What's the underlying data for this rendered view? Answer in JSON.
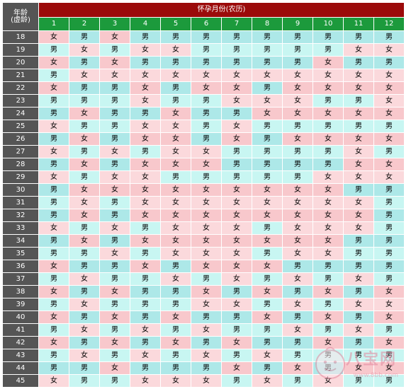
{
  "header": {
    "age_label": "年龄\n(虚龄)",
    "age_label_line1": "年龄",
    "age_label_line2": "(虚龄)",
    "title": "怀孕月份(农历)",
    "months": [
      "1",
      "2",
      "3",
      "4",
      "5",
      "6",
      "7",
      "8",
      "9",
      "10",
      "11",
      "12"
    ]
  },
  "rows": [
    {
      "age": "18",
      "cells": [
        "女",
        "男",
        "女",
        "男",
        "男",
        "男",
        "男",
        "男",
        "男",
        "男",
        "男",
        "男"
      ]
    },
    {
      "age": "19",
      "cells": [
        "男",
        "女",
        "男",
        "女",
        "女",
        "男",
        "男",
        "男",
        "男",
        "男",
        "女",
        "女"
      ]
    },
    {
      "age": "20",
      "cells": [
        "女",
        "男",
        "女",
        "男",
        "男",
        "男",
        "男",
        "男",
        "男",
        "女",
        "男",
        "男"
      ]
    },
    {
      "age": "21",
      "cells": [
        "男",
        "女",
        "女",
        "女",
        "女",
        "女",
        "女",
        "女",
        "女",
        "女",
        "女",
        "女"
      ]
    },
    {
      "age": "22",
      "cells": [
        "女",
        "男",
        "男",
        "女",
        "男",
        "女",
        "女",
        "男",
        "女",
        "女",
        "女",
        "女"
      ]
    },
    {
      "age": "23",
      "cells": [
        "男",
        "男",
        "男",
        "女",
        "男",
        "男",
        "女",
        "女",
        "女",
        "男",
        "男",
        "女"
      ]
    },
    {
      "age": "24",
      "cells": [
        "男",
        "女",
        "男",
        "男",
        "女",
        "男",
        "男",
        "女",
        "女",
        "女",
        "女",
        "女"
      ]
    },
    {
      "age": "25",
      "cells": [
        "女",
        "男",
        "男",
        "女",
        "女",
        "男",
        "女",
        "男",
        "男",
        "男",
        "男",
        "男"
      ]
    },
    {
      "age": "26",
      "cells": [
        "男",
        "女",
        "男",
        "女",
        "女",
        "男",
        "女",
        "男",
        "女",
        "女",
        "女",
        "女"
      ]
    },
    {
      "age": "27",
      "cells": [
        "女",
        "男",
        "女",
        "男",
        "女",
        "女",
        "男",
        "男",
        "男",
        "男",
        "女",
        "男"
      ]
    },
    {
      "age": "28",
      "cells": [
        "男",
        "女",
        "男",
        "女",
        "女",
        "女",
        "男",
        "男",
        "男",
        "男",
        "女",
        "女"
      ]
    },
    {
      "age": "29",
      "cells": [
        "女",
        "男",
        "女",
        "女",
        "男",
        "男",
        "男",
        "男",
        "男",
        "女",
        "女",
        "女"
      ]
    },
    {
      "age": "30",
      "cells": [
        "男",
        "女",
        "女",
        "女",
        "女",
        "女",
        "女",
        "女",
        "女",
        "女",
        "男",
        "男"
      ]
    },
    {
      "age": "31",
      "cells": [
        "男",
        "女",
        "男",
        "女",
        "女",
        "女",
        "女",
        "女",
        "女",
        "女",
        "女",
        "男"
      ]
    },
    {
      "age": "32",
      "cells": [
        "男",
        "女",
        "男",
        "女",
        "女",
        "女",
        "女",
        "女",
        "女",
        "女",
        "女",
        "男"
      ]
    },
    {
      "age": "33",
      "cells": [
        "女",
        "男",
        "女",
        "男",
        "女",
        "女",
        "女",
        "男",
        "女",
        "女",
        "女",
        "男"
      ]
    },
    {
      "age": "34",
      "cells": [
        "男",
        "女",
        "男",
        "女",
        "女",
        "女",
        "女",
        "女",
        "女",
        "女",
        "男",
        "男"
      ]
    },
    {
      "age": "35",
      "cells": [
        "男",
        "男",
        "女",
        "男",
        "女",
        "女",
        "女",
        "男",
        "女",
        "女",
        "男",
        "男"
      ]
    },
    {
      "age": "36",
      "cells": [
        "女",
        "男",
        "男",
        "女",
        "男",
        "女",
        "女",
        "女",
        "男",
        "男",
        "男",
        "男"
      ]
    },
    {
      "age": "37",
      "cells": [
        "男",
        "女",
        "男",
        "男",
        "女",
        "男",
        "女",
        "男",
        "女",
        "男",
        "女",
        "男"
      ]
    },
    {
      "age": "38",
      "cells": [
        "女",
        "男",
        "女",
        "男",
        "男",
        "女",
        "男",
        "女",
        "男",
        "女",
        "男",
        "女"
      ]
    },
    {
      "age": "39",
      "cells": [
        "男",
        "女",
        "男",
        "男",
        "男",
        "女",
        "女",
        "男",
        "女",
        "男",
        "女",
        "女"
      ]
    },
    {
      "age": "40",
      "cells": [
        "女",
        "男",
        "女",
        "男",
        "女",
        "男",
        "男",
        "女",
        "男",
        "女",
        "男",
        "女"
      ]
    },
    {
      "age": "41",
      "cells": [
        "男",
        "女",
        "男",
        "女",
        "男",
        "女",
        "男",
        "男",
        "女",
        "男",
        "女",
        "男"
      ]
    },
    {
      "age": "42",
      "cells": [
        "女",
        "男",
        "女",
        "男",
        "女",
        "男",
        "女",
        "男",
        "男",
        "女",
        "男",
        "女"
      ]
    },
    {
      "age": "43",
      "cells": [
        "男",
        "女",
        "男",
        "女",
        "男",
        "女",
        "男",
        "女",
        "男",
        "男",
        "男",
        "男"
      ]
    },
    {
      "age": "44",
      "cells": [
        "男",
        "男",
        "女",
        "男",
        "男",
        "男",
        "女",
        "男",
        "女",
        "男",
        "女",
        "女"
      ]
    },
    {
      "age": "45",
      "cells": [
        "女",
        "男",
        "男",
        "女",
        "女",
        "女",
        "男",
        "女",
        "男",
        "女",
        "男",
        "男"
      ]
    }
  ],
  "colors": {
    "boy_cell": "#ade8e8",
    "girl_cell": "#f8c8cc",
    "age_column": "#555555",
    "title_bar": "#9b0a0a",
    "month_bar": "#1c9a3c"
  },
  "watermark": {
    "brand": "八宝网",
    "url": "www.8bb.com"
  }
}
